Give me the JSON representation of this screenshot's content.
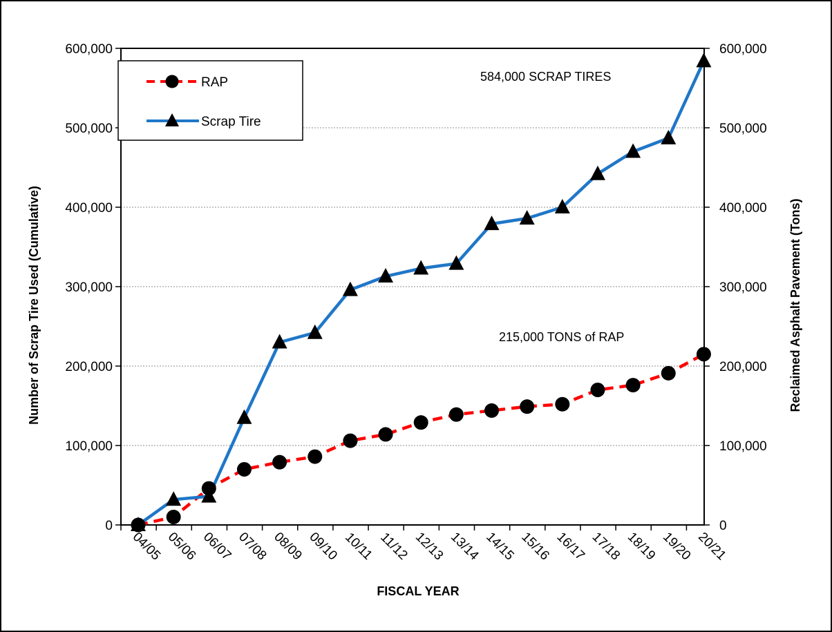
{
  "chart_data": {
    "type": "line",
    "categories": [
      "04/05",
      "05/06",
      "06/07",
      "07/08",
      "08/09",
      "09/10",
      "10/11",
      "11/12",
      "12/13",
      "13/14",
      "14/15",
      "15/16",
      "16/17",
      "17/18",
      "18/19",
      "19/20",
      "20/21"
    ],
    "series": [
      {
        "name": "RAP",
        "axis": "right",
        "color": "#ff0000",
        "marker": "circle",
        "values": [
          0,
          10000,
          46000,
          70000,
          79000,
          86000,
          106000,
          114000,
          129000,
          139000,
          144000,
          149000,
          152000,
          170000,
          176000,
          191000,
          215000
        ]
      },
      {
        "name": "Scrap Tire",
        "axis": "left",
        "color": "#1f77c8",
        "marker": "triangle",
        "values": [
          0,
          32000,
          36000,
          135000,
          230000,
          242000,
          296000,
          313000,
          323000,
          329000,
          379000,
          386000,
          400000,
          442000,
          470000,
          487000,
          584000
        ]
      }
    ],
    "xlabel": "FISCAL YEAR",
    "ylabel": "Number of Scrap Tire Used (Cumulative)",
    "y2label": "Reclaimed Asphalt Pavement (Tons)",
    "ylim": [
      0,
      600000
    ],
    "y2lim": [
      0,
      600000
    ],
    "yticks": [
      "0",
      "100,000",
      "200,000",
      "300,000",
      "400,000",
      "500,000",
      "600,000"
    ],
    "y2ticks": [
      "0",
      "100,000",
      "200,000",
      "300,000",
      "400,000",
      "500,000",
      "600,000"
    ],
    "annotations": [
      "584,000 SCRAP TIRES",
      "215,000 TONS of RAP"
    ],
    "legend_position": "top-left",
    "grid": "horizontal dotted"
  }
}
